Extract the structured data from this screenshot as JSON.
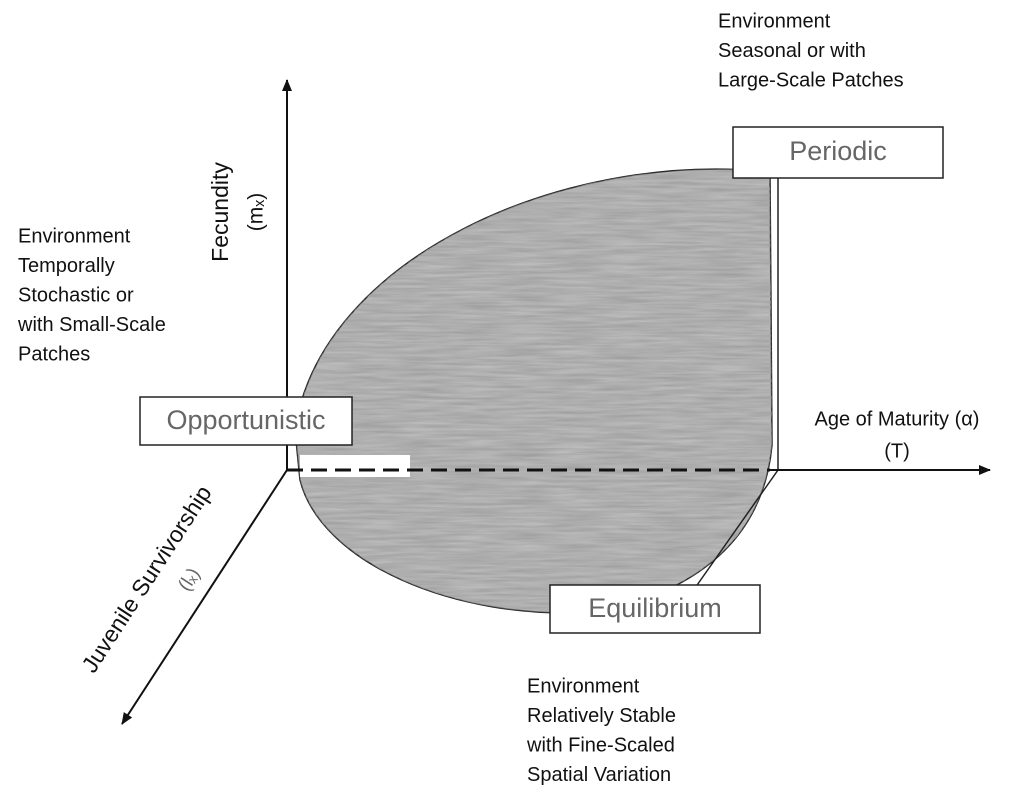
{
  "axes": {
    "vertical": {
      "label": "Fecundity",
      "symbol": "(mₓ)"
    },
    "horizontal": {
      "label": "Age of Maturity (α)",
      "symbol": "(T)"
    },
    "diagonal": {
      "label": "Juvenile Survivorship",
      "symbol": "(lₓ)"
    }
  },
  "strategies": {
    "periodic": "Periodic",
    "opportunistic": "Opportunistic",
    "equilibrium": "Equilibrium"
  },
  "environments": {
    "periodic": [
      "Environment",
      "Seasonal or with",
      "Large-Scale Patches"
    ],
    "opportunistic": [
      "Environment",
      "Temporally",
      "Stochastic or",
      "with Small-Scale",
      "Patches"
    ],
    "equilibrium": [
      "Environment",
      "Relatively Stable",
      "with Fine-Scaled",
      "Spatial Variation"
    ]
  }
}
